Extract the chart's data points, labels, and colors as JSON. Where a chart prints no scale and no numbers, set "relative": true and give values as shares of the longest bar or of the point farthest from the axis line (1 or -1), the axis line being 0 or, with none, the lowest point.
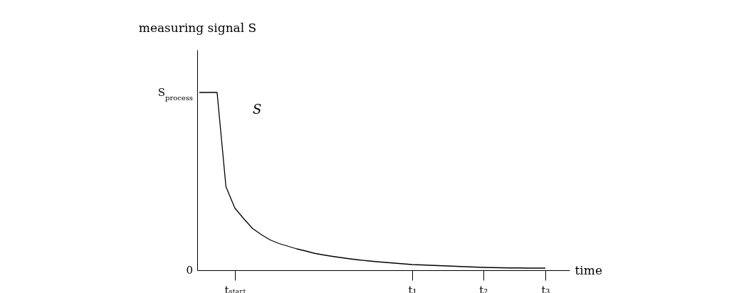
{
  "chart_data": {
    "type": "line",
    "relative": true,
    "xlabel": "time",
    "ylabel": "measuring signal S",
    "categories": [
      null,
      null,
      null,
      null,
      "tₛₜₐᵣₜ",
      null,
      null,
      null,
      null,
      null,
      null,
      null,
      null,
      null,
      null,
      null,
      null,
      null,
      null,
      null,
      null,
      null,
      null,
      null,
      "t₁",
      null,
      null,
      null,
      null,
      null,
      null,
      null,
      "t₂",
      null,
      null,
      null,
      null,
      null,
      null,
      "t₃"
    ],
    "series": [
      {
        "color": "#000000",
        "values": [
          1,
          1,
          1,
          0.47,
          0.35,
          0.29,
          0.235,
          0.2,
          0.17,
          0.15,
          0.135,
          0.12,
          0.108,
          0.095,
          0.086,
          0.078,
          0.071,
          0.064,
          0.058,
          0.053,
          0.048,
          0.044,
          0.04,
          0.036,
          0.032,
          0.03,
          0.028,
          0.026,
          0.024,
          0.022,
          0.02,
          0.018,
          0.016,
          0.015,
          0.014,
          0.013,
          0.013,
          0.012,
          0.012,
          0.012
        ]
      }
    ],
    "annotations": [
      "S",
      "0",
      "S$_{process}$"
    ]
  }
}
